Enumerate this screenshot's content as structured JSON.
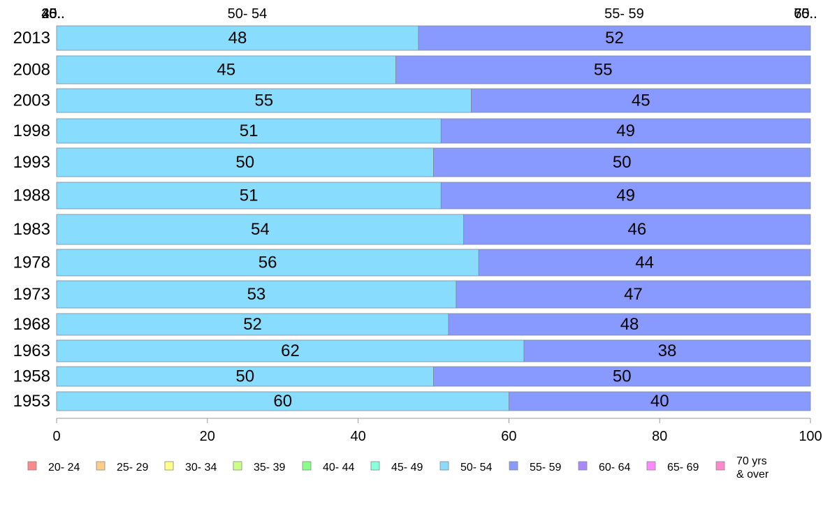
{
  "chart_data": {
    "type": "bar",
    "orientation": "horizontal",
    "stacked": true,
    "percent_stacked": true,
    "categories": [
      "2013",
      "2008",
      "2003",
      "1998",
      "1993",
      "1988",
      "1983",
      "1978",
      "1973",
      "1968",
      "1963",
      "1958",
      "1953"
    ],
    "series": [
      {
        "name": "50- 54",
        "color": "#88ddff",
        "values": [
          48,
          45,
          55,
          51,
          50,
          51,
          54,
          56,
          53,
          52,
          62,
          50,
          60
        ]
      },
      {
        "name": "55- 59",
        "color": "#8899ff",
        "values": [
          52,
          55,
          45,
          49,
          50,
          49,
          46,
          44,
          47,
          48,
          38,
          50,
          40
        ]
      }
    ],
    "xlim": [
      0,
      100
    ],
    "xticks": [
      "0",
      "20",
      "40",
      "60",
      "80",
      "100"
    ],
    "top_labels": [
      {
        "text": "20..",
        "at": 0
      },
      {
        "text": "25..",
        "at": 0
      },
      {
        "text": "30..",
        "at": 0
      },
      {
        "text": "35..",
        "at": 0
      },
      {
        "text": "40..",
        "at": 0
      },
      {
        "text": "45..",
        "at": 0
      },
      {
        "text": "50- 54",
        "at": 24
      },
      {
        "text": "55- 59",
        "at": 74
      },
      {
        "text": "60..",
        "at": 100
      },
      {
        "text": "65..",
        "at": 100
      },
      {
        "text": "70..",
        "at": 100
      }
    ],
    "legend": {
      "placement": "bottom",
      "items": [
        {
          "label": "20- 24",
          "color": "#ff8888"
        },
        {
          "label": "25- 29",
          "color": "#ffcc88"
        },
        {
          "label": "30- 34",
          "color": "#ffff88"
        },
        {
          "label": "35- 39",
          "color": "#ccff88"
        },
        {
          "label": "40- 44",
          "color": "#88ff88"
        },
        {
          "label": "45- 49",
          "color": "#88ffdd"
        },
        {
          "label": "50- 54",
          "color": "#88ddff"
        },
        {
          "label": "55- 59",
          "color": "#8899ff"
        },
        {
          "label": "60- 64",
          "color": "#aa88ff"
        },
        {
          "label": "65- 69",
          "color": "#ff88ff"
        },
        {
          "label": "70 yrs\n& over",
          "color": "#ff88cc"
        }
      ]
    }
  }
}
